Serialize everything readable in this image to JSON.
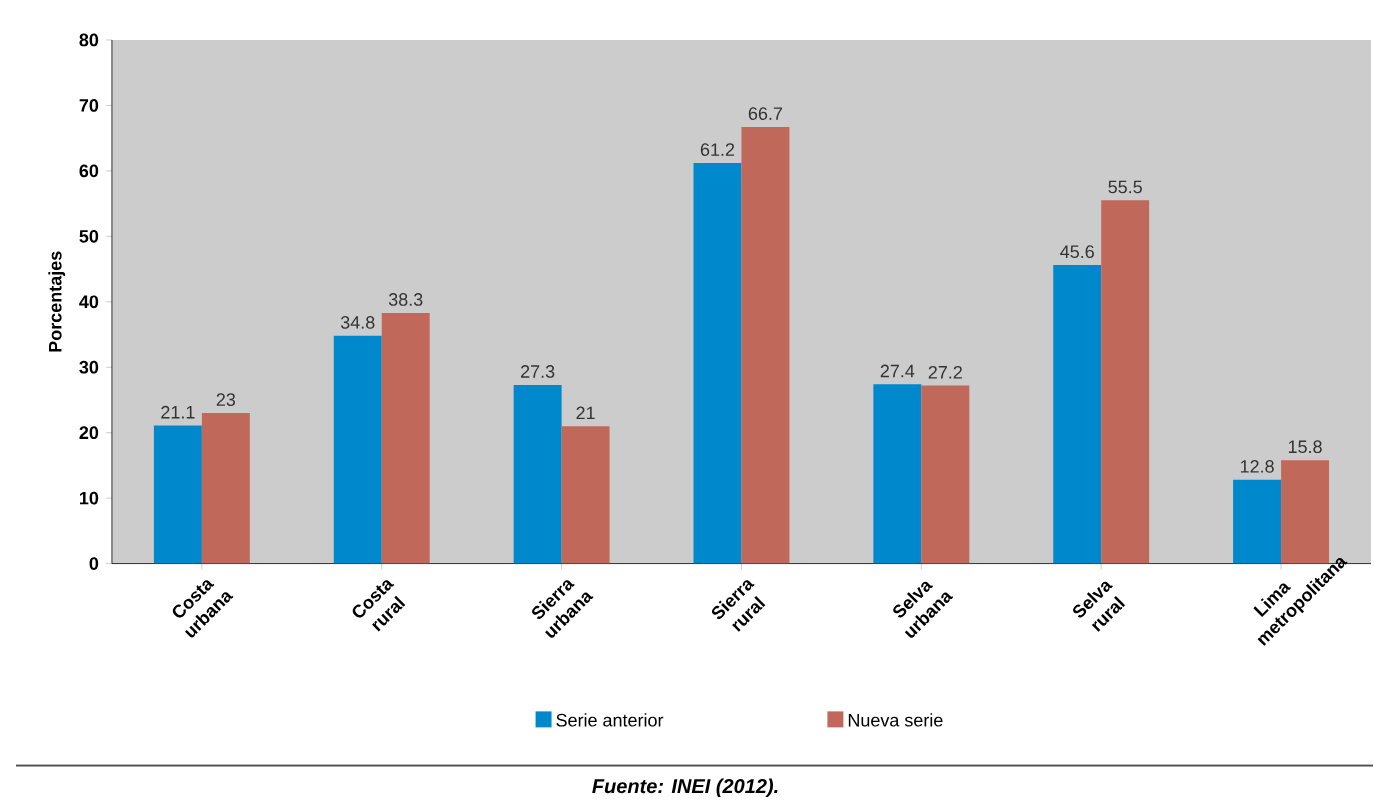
{
  "chart_data": {
    "type": "bar",
    "ylabel": "Porcentajes",
    "categories": [
      "Costa urbana",
      "Costa rural",
      "Sierra urbana",
      "Sierra rural",
      "Selva urbana",
      "Selva rural",
      "Lima metropolitana"
    ],
    "series": [
      {
        "name": "Serie anterior",
        "color": "#0088cc",
        "values": [
          21.1,
          34.8,
          27.3,
          61.2,
          27.4,
          45.6,
          12.8
        ]
      },
      {
        "name": "Nueva serie",
        "color": "#c0695a",
        "values": [
          23,
          38.3,
          21,
          66.7,
          27.2,
          55.5,
          15.8
        ]
      }
    ],
    "ylim": [
      0,
      80
    ],
    "yticks": [
      0,
      10,
      20,
      30,
      40,
      50,
      60,
      70,
      80
    ],
    "data_labels": true,
    "legend": "bottom",
    "grid": false,
    "annotations": [
      "**Fuente: INEI (2012).**"
    ]
  }
}
